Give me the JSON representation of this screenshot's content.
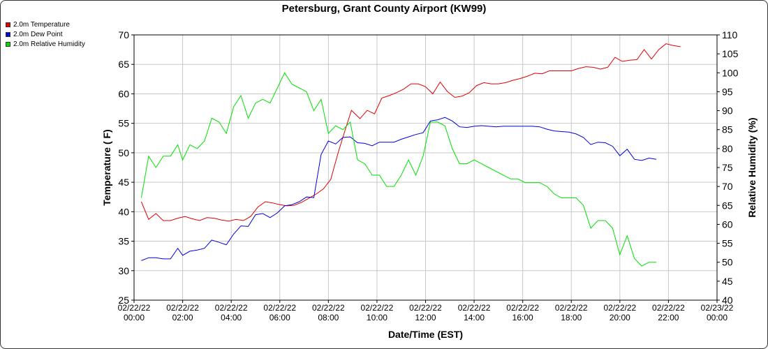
{
  "title": "Petersburg, Grant County Airport (KW99)",
  "chart_data": {
    "type": "line",
    "title": "Petersburg, Grant County Airport (KW99)",
    "xlabel": "Date/Time (EST)",
    "ylabel": "Temperature ( F)",
    "ylabel_right": "Relative Humidity (%)",
    "xlim_hours": [
      0,
      24
    ],
    "ylim": [
      25,
      70
    ],
    "ylim_right": [
      40,
      110
    ],
    "grid": true,
    "legend_position": "top-left outside",
    "x_ticks": [
      {
        "hour": 0,
        "date": "02/22/22",
        "time": "00:00"
      },
      {
        "hour": 2,
        "date": "02/22/22",
        "time": "02:00"
      },
      {
        "hour": 4,
        "date": "02/22/22",
        "time": "04:00"
      },
      {
        "hour": 6,
        "date": "02/22/22",
        "time": "06:00"
      },
      {
        "hour": 8,
        "date": "02/22/22",
        "time": "08:00"
      },
      {
        "hour": 10,
        "date": "02/22/22",
        "time": "10:00"
      },
      {
        "hour": 12,
        "date": "02/22/22",
        "time": "12:00"
      },
      {
        "hour": 14,
        "date": "02/22/22",
        "time": "14:00"
      },
      {
        "hour": 16,
        "date": "02/22/22",
        "time": "16:00"
      },
      {
        "hour": 18,
        "date": "02/22/22",
        "time": "18:00"
      },
      {
        "hour": 20,
        "date": "02/22/22",
        "time": "20:00"
      },
      {
        "hour": 22,
        "date": "02/22/22",
        "time": "22:00"
      },
      {
        "hour": 24,
        "date": "02/23/22",
        "time": "00:00"
      }
    ],
    "y_ticks_left": [
      "25",
      "30",
      "35",
      "40",
      "45",
      "50",
      "55",
      "60",
      "65",
      "70"
    ],
    "y_ticks_right": [
      "40",
      "45",
      "50",
      "55",
      "60",
      "65",
      "70",
      "75",
      "80",
      "85",
      "90",
      "95",
      "100",
      "105",
      "110"
    ],
    "series": [
      {
        "name": "2.0m Temperature",
        "axis": "left",
        "color": "#e00000",
        "points": [
          [
            0.3,
            41.7
          ],
          [
            0.6,
            38.7
          ],
          [
            0.9,
            39.7
          ],
          [
            1.2,
            38.5
          ],
          [
            1.5,
            38.5
          ],
          [
            1.8,
            38.9
          ],
          [
            2.1,
            39.2
          ],
          [
            2.4,
            38.8
          ],
          [
            2.7,
            38.5
          ],
          [
            3.0,
            39.0
          ],
          [
            3.3,
            38.9
          ],
          [
            3.6,
            38.6
          ],
          [
            3.9,
            38.4
          ],
          [
            4.2,
            38.7
          ],
          [
            4.5,
            38.5
          ],
          [
            4.8,
            39.2
          ],
          [
            5.1,
            40.8
          ],
          [
            5.4,
            41.7
          ],
          [
            5.7,
            41.5
          ],
          [
            6.0,
            41.2
          ],
          [
            6.3,
            41.0
          ],
          [
            6.6,
            41.1
          ],
          [
            6.9,
            41.6
          ],
          [
            7.2,
            42.3
          ],
          [
            7.5,
            43.0
          ],
          [
            7.8,
            43.9
          ],
          [
            8.1,
            45.5
          ],
          [
            8.4,
            50.0
          ],
          [
            8.7,
            54.0
          ],
          [
            8.95,
            57.2
          ],
          [
            9.3,
            55.8
          ],
          [
            9.6,
            57.2
          ],
          [
            9.9,
            56.6
          ],
          [
            10.2,
            59.3
          ],
          [
            10.5,
            59.7
          ],
          [
            10.8,
            60.2
          ],
          [
            11.1,
            60.8
          ],
          [
            11.4,
            61.7
          ],
          [
            11.7,
            61.7
          ],
          [
            12.0,
            61.2
          ],
          [
            12.3,
            60.0
          ],
          [
            12.6,
            62.0
          ],
          [
            12.9,
            60.4
          ],
          [
            13.2,
            59.4
          ],
          [
            13.5,
            59.6
          ],
          [
            13.8,
            60.2
          ],
          [
            14.1,
            61.4
          ],
          [
            14.4,
            61.9
          ],
          [
            14.7,
            61.7
          ],
          [
            15.0,
            61.7
          ],
          [
            15.3,
            61.9
          ],
          [
            15.6,
            62.3
          ],
          [
            15.9,
            62.6
          ],
          [
            16.2,
            63.0
          ],
          [
            16.5,
            63.5
          ],
          [
            16.8,
            63.4
          ],
          [
            17.1,
            63.9
          ],
          [
            17.4,
            63.9
          ],
          [
            17.7,
            63.9
          ],
          [
            18.0,
            63.9
          ],
          [
            18.3,
            64.3
          ],
          [
            18.6,
            64.6
          ],
          [
            18.9,
            64.5
          ],
          [
            19.2,
            64.2
          ],
          [
            19.5,
            64.5
          ],
          [
            19.8,
            66.2
          ],
          [
            20.1,
            65.5
          ],
          [
            20.4,
            65.7
          ],
          [
            20.7,
            65.8
          ],
          [
            21.0,
            67.5
          ],
          [
            21.3,
            65.9
          ],
          [
            21.6,
            67.5
          ],
          [
            21.9,
            68.5
          ],
          [
            22.2,
            68.2
          ],
          [
            22.5,
            68.0
          ]
        ]
      },
      {
        "name": "2.0m Dew Point",
        "axis": "left",
        "color": "#0000e0",
        "points": [
          [
            0.3,
            31.7
          ],
          [
            0.6,
            32.2
          ],
          [
            0.9,
            32.2
          ],
          [
            1.2,
            32.0
          ],
          [
            1.5,
            32.0
          ],
          [
            1.8,
            33.8
          ],
          [
            2.0,
            32.6
          ],
          [
            2.3,
            33.3
          ],
          [
            2.6,
            33.5
          ],
          [
            2.9,
            33.8
          ],
          [
            3.2,
            35.2
          ],
          [
            3.5,
            34.8
          ],
          [
            3.8,
            34.4
          ],
          [
            4.1,
            36.2
          ],
          [
            4.4,
            37.6
          ],
          [
            4.7,
            37.5
          ],
          [
            5.0,
            39.5
          ],
          [
            5.3,
            39.7
          ],
          [
            5.6,
            39.0
          ],
          [
            5.9,
            39.8
          ],
          [
            6.2,
            41.0
          ],
          [
            6.5,
            41.2
          ],
          [
            6.8,
            41.7
          ],
          [
            7.1,
            42.5
          ],
          [
            7.4,
            42.4
          ],
          [
            7.7,
            49.7
          ],
          [
            8.0,
            52.0
          ],
          [
            8.3,
            51.5
          ],
          [
            8.6,
            52.6
          ],
          [
            8.9,
            52.7
          ],
          [
            9.2,
            51.7
          ],
          [
            9.5,
            51.6
          ],
          [
            9.8,
            51.2
          ],
          [
            10.1,
            51.8
          ],
          [
            10.4,
            51.8
          ],
          [
            10.7,
            51.8
          ],
          [
            11.0,
            52.3
          ],
          [
            11.3,
            52.7
          ],
          [
            11.6,
            53.1
          ],
          [
            11.9,
            53.4
          ],
          [
            12.2,
            55.4
          ],
          [
            12.5,
            55.6
          ],
          [
            12.8,
            56.0
          ],
          [
            13.1,
            55.4
          ],
          [
            13.4,
            54.4
          ],
          [
            13.7,
            54.3
          ],
          [
            14.0,
            54.5
          ],
          [
            14.3,
            54.6
          ],
          [
            14.6,
            54.5
          ],
          [
            14.9,
            54.4
          ],
          [
            15.2,
            54.5
          ],
          [
            15.5,
            54.5
          ],
          [
            15.8,
            54.5
          ],
          [
            16.1,
            54.5
          ],
          [
            16.4,
            54.5
          ],
          [
            16.7,
            54.4
          ],
          [
            17.0,
            54.0
          ],
          [
            17.3,
            53.7
          ],
          [
            17.6,
            53.6
          ],
          [
            17.9,
            53.5
          ],
          [
            18.2,
            53.2
          ],
          [
            18.5,
            52.6
          ],
          [
            18.8,
            51.4
          ],
          [
            19.1,
            51.8
          ],
          [
            19.4,
            51.7
          ],
          [
            19.7,
            51.1
          ],
          [
            20.0,
            49.5
          ],
          [
            20.3,
            50.6
          ],
          [
            20.6,
            48.9
          ],
          [
            20.9,
            48.7
          ],
          [
            21.2,
            49.1
          ],
          [
            21.5,
            48.9
          ]
        ]
      },
      {
        "name": "2.0m Relative Humidity",
        "axis": "right",
        "color": "#00e000",
        "points": [
          [
            0.3,
            67
          ],
          [
            0.6,
            78
          ],
          [
            0.9,
            75
          ],
          [
            1.2,
            78
          ],
          [
            1.5,
            78
          ],
          [
            1.8,
            81
          ],
          [
            2.0,
            77
          ],
          [
            2.3,
            81
          ],
          [
            2.6,
            80
          ],
          [
            2.9,
            82
          ],
          [
            3.2,
            88
          ],
          [
            3.5,
            87
          ],
          [
            3.8,
            84
          ],
          [
            4.1,
            91
          ],
          [
            4.4,
            94
          ],
          [
            4.7,
            88
          ],
          [
            5.0,
            92
          ],
          [
            5.3,
            93
          ],
          [
            5.6,
            92
          ],
          [
            5.9,
            96
          ],
          [
            6.2,
            100
          ],
          [
            6.5,
            97
          ],
          [
            6.8,
            96
          ],
          [
            7.1,
            95
          ],
          [
            7.4,
            90
          ],
          [
            7.7,
            93
          ],
          [
            8.0,
            84
          ],
          [
            8.3,
            86
          ],
          [
            8.6,
            85
          ],
          [
            8.9,
            87
          ],
          [
            9.2,
            77
          ],
          [
            9.5,
            76
          ],
          [
            9.8,
            73
          ],
          [
            10.1,
            73
          ],
          [
            10.4,
            70
          ],
          [
            10.7,
            70
          ],
          [
            11.0,
            73
          ],
          [
            11.3,
            77
          ],
          [
            11.6,
            73
          ],
          [
            11.9,
            78
          ],
          [
            12.2,
            87
          ],
          [
            12.5,
            87
          ],
          [
            12.8,
            86
          ],
          [
            13.1,
            80
          ],
          [
            13.4,
            76
          ],
          [
            13.7,
            76
          ],
          [
            14.0,
            77
          ],
          [
            14.3,
            76
          ],
          [
            14.6,
            75
          ],
          [
            14.9,
            74
          ],
          [
            15.2,
            73
          ],
          [
            15.5,
            72
          ],
          [
            15.8,
            72
          ],
          [
            16.1,
            71
          ],
          [
            16.4,
            71
          ],
          [
            16.7,
            71
          ],
          [
            17.0,
            70
          ],
          [
            17.3,
            68
          ],
          [
            17.6,
            67
          ],
          [
            17.9,
            67
          ],
          [
            18.2,
            67
          ],
          [
            18.5,
            65
          ],
          [
            18.8,
            59
          ],
          [
            19.1,
            61
          ],
          [
            19.4,
            61
          ],
          [
            19.7,
            59
          ],
          [
            20.0,
            52
          ],
          [
            20.3,
            57
          ],
          [
            20.6,
            51
          ],
          [
            20.9,
            49
          ],
          [
            21.2,
            50
          ],
          [
            21.5,
            50
          ]
        ]
      }
    ]
  }
}
